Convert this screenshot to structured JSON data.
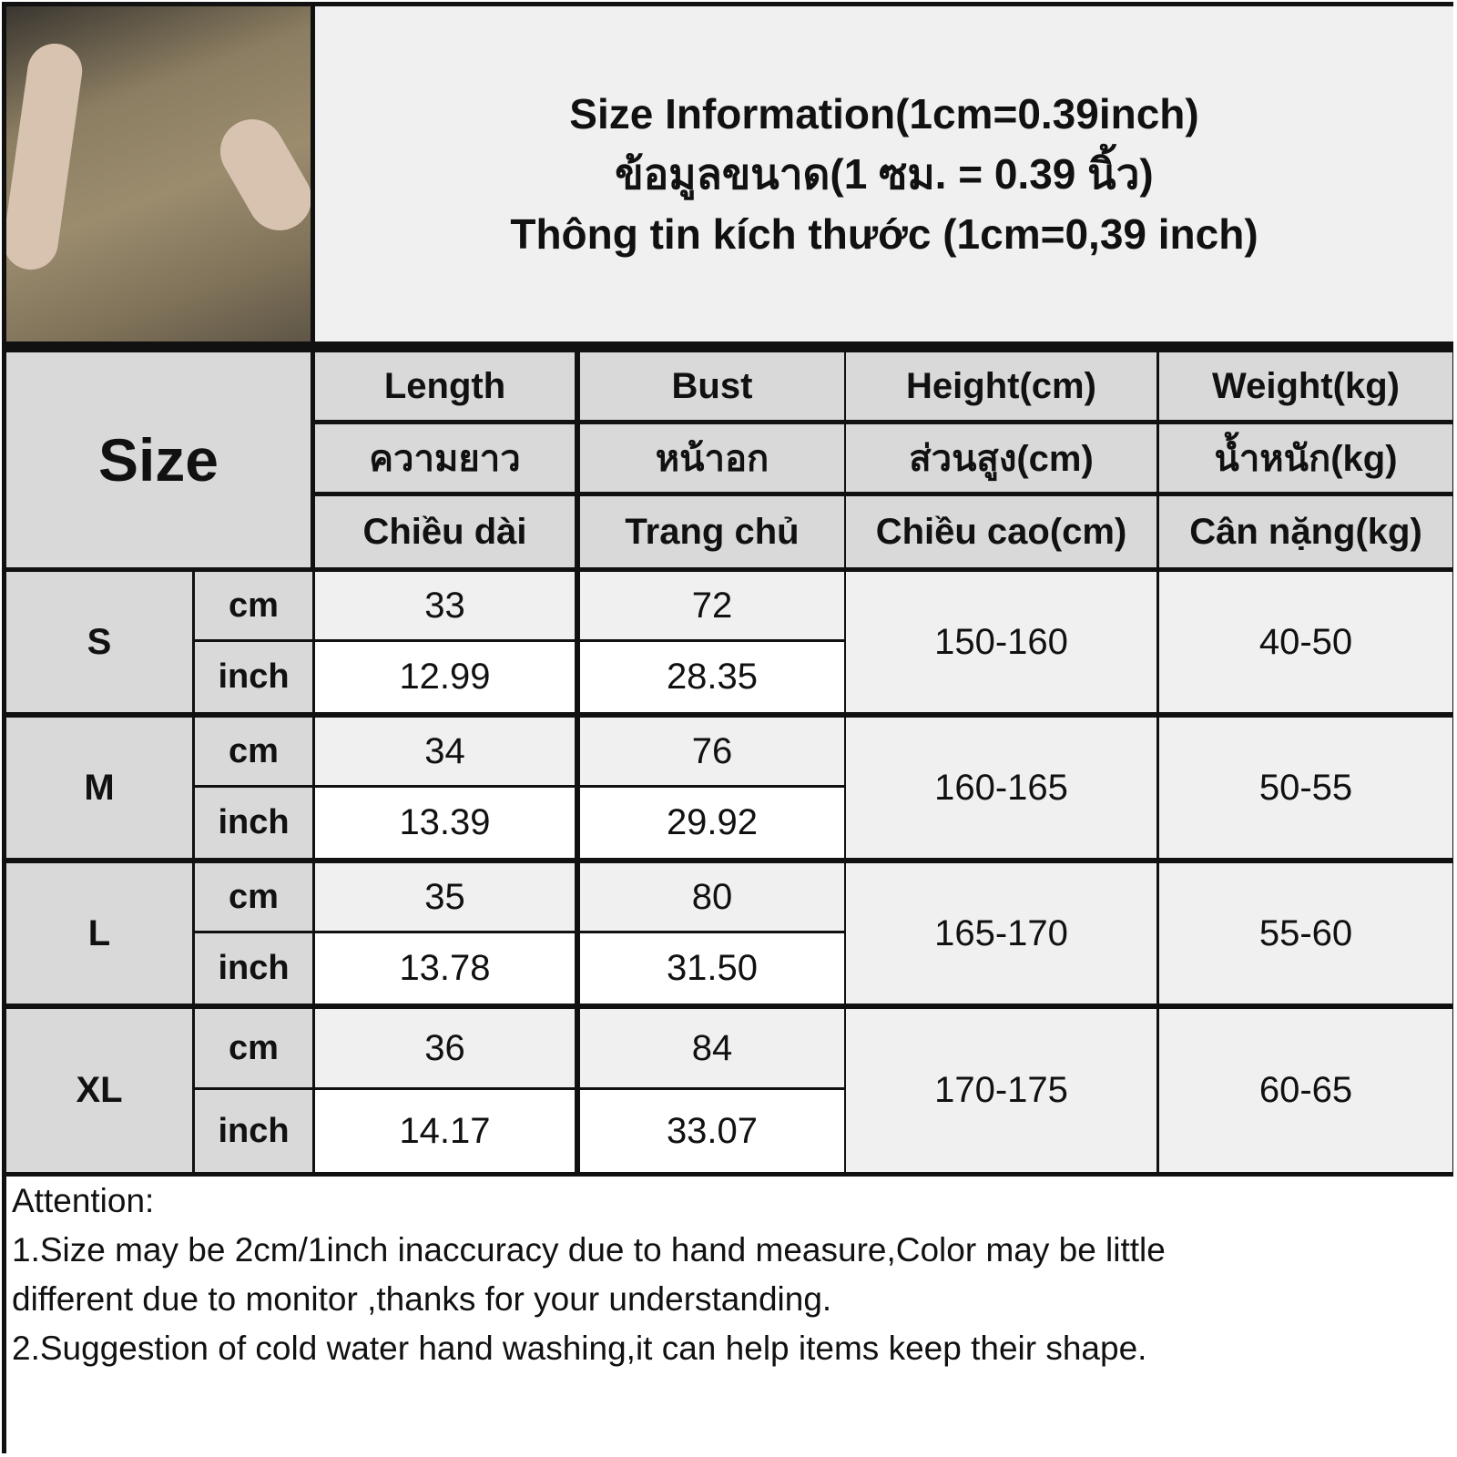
{
  "title": {
    "en": "Size Information(1cm=0.39inch)",
    "th": "ข้อมูลขนาด(1 ซม. = 0.39 นิ้ว)",
    "vi": "Thông tin kích thước (1cm=0,39 inch)"
  },
  "size_label": "Size",
  "headers": [
    {
      "en": "Length",
      "th": "ความยาว",
      "vi": "Chiều dài"
    },
    {
      "en": "Bust",
      "th": "หน้าอก",
      "vi": "Trang chủ"
    },
    {
      "en": "Height(cm)",
      "th": "ส่วนสูง(cm)",
      "vi": "Chiều cao(cm)"
    },
    {
      "en": "Weight(kg)",
      "th": "น้ำหนัก(kg)",
      "vi": "Cân nặng(kg)"
    }
  ],
  "units": {
    "cm": "cm",
    "inch": "inch"
  },
  "rows": [
    {
      "size": "S",
      "cm": {
        "length": "33",
        "bust": "72"
      },
      "inch": {
        "length": "12.99",
        "bust": "28.35"
      },
      "height": "150-160",
      "weight": "40-50"
    },
    {
      "size": "M",
      "cm": {
        "length": "34",
        "bust": "76"
      },
      "inch": {
        "length": "13.39",
        "bust": "29.92"
      },
      "height": "160-165",
      "weight": "50-55"
    },
    {
      "size": "L",
      "cm": {
        "length": "35",
        "bust": "80"
      },
      "inch": {
        "length": "13.78",
        "bust": "31.50"
      },
      "height": "165-170",
      "weight": "55-60"
    },
    {
      "size": "XL",
      "cm": {
        "length": "36",
        "bust": "84"
      },
      "inch": {
        "length": "14.17",
        "bust": "33.07"
      },
      "height": "170-175",
      "weight": "60-65"
    }
  ],
  "notes": {
    "heading": "Attention:",
    "lines": [
      "1.Size may be 2cm/1inch inaccuracy due to hand measure,Color may be little",
      "different due to monitor ,thanks for your understanding.",
      "2.Suggestion of cold water hand washing,it can help items keep their shape."
    ]
  }
}
